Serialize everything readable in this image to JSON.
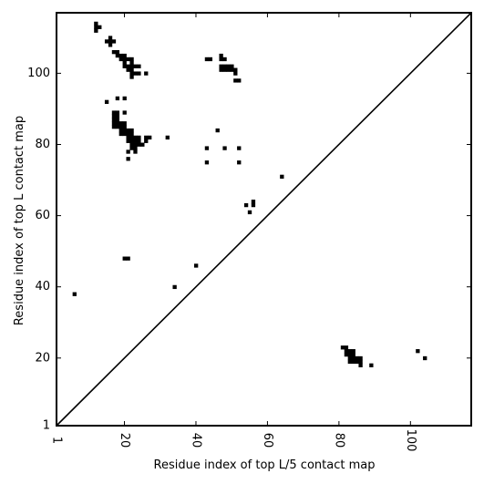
{
  "chart_data": {
    "type": "scatter",
    "title": "",
    "xlabel": "Residue index of top L/5 contact map",
    "ylabel": "Residue index of top L contact map",
    "xlim": [
      1,
      117
    ],
    "ylim": [
      1,
      117
    ],
    "x_ticks": [
      1,
      20,
      40,
      60,
      80,
      100
    ],
    "y_ticks": [
      1,
      20,
      40,
      60,
      80,
      100
    ],
    "grid": false,
    "diagonal": true,
    "upper_left_points": [
      [
        12,
        112
      ],
      [
        12,
        113
      ],
      [
        12,
        114
      ],
      [
        13,
        113
      ],
      [
        15,
        109
      ],
      [
        16,
        108
      ],
      [
        16,
        109
      ],
      [
        16,
        110
      ],
      [
        17,
        109
      ],
      [
        17,
        106
      ],
      [
        18,
        106
      ],
      [
        18,
        105
      ],
      [
        19,
        105
      ],
      [
        19,
        104
      ],
      [
        20,
        105
      ],
      [
        20,
        104
      ],
      [
        20,
        103
      ],
      [
        20,
        102
      ],
      [
        21,
        102
      ],
      [
        21,
        101
      ],
      [
        21,
        104
      ],
      [
        22,
        104
      ],
      [
        22,
        103
      ],
      [
        22,
        102
      ],
      [
        22,
        101
      ],
      [
        22,
        100
      ],
      [
        22,
        99
      ],
      [
        23,
        102
      ],
      [
        23,
        100
      ],
      [
        24,
        102
      ],
      [
        24,
        100
      ],
      [
        26,
        100
      ],
      [
        15,
        92
      ],
      [
        18,
        93
      ],
      [
        20,
        93
      ],
      [
        20,
        89
      ],
      [
        17,
        89
      ],
      [
        18,
        89
      ],
      [
        17,
        88
      ],
      [
        18,
        88
      ],
      [
        17,
        87
      ],
      [
        18,
        87
      ],
      [
        17,
        86
      ],
      [
        18,
        86
      ],
      [
        19,
        86
      ],
      [
        20,
        86
      ],
      [
        17,
        85
      ],
      [
        18,
        85
      ],
      [
        19,
        85
      ],
      [
        20,
        85
      ],
      [
        19,
        84
      ],
      [
        20,
        84
      ],
      [
        21,
        84
      ],
      [
        22,
        84
      ],
      [
        19,
        83
      ],
      [
        20,
        83
      ],
      [
        21,
        83
      ],
      [
        22,
        83
      ],
      [
        21,
        82
      ],
      [
        22,
        82
      ],
      [
        23,
        82
      ],
      [
        24,
        82
      ],
      [
        21,
        81
      ],
      [
        22,
        81
      ],
      [
        23,
        81
      ],
      [
        24,
        81
      ],
      [
        22,
        80
      ],
      [
        23,
        80
      ],
      [
        24,
        80
      ],
      [
        25,
        80
      ],
      [
        22,
        79
      ],
      [
        23,
        79
      ],
      [
        21,
        78
      ],
      [
        23,
        78
      ],
      [
        21,
        76
      ],
      [
        26,
        82
      ],
      [
        27,
        82
      ],
      [
        26,
        81
      ],
      [
        32,
        82
      ],
      [
        43,
        104
      ],
      [
        44,
        104
      ],
      [
        47,
        104
      ],
      [
        48,
        104
      ],
      [
        47,
        105
      ],
      [
        47,
        102
      ],
      [
        48,
        102
      ],
      [
        49,
        102
      ],
      [
        50,
        102
      ],
      [
        47,
        101
      ],
      [
        48,
        101
      ],
      [
        49,
        101
      ],
      [
        50,
        101
      ],
      [
        51,
        101
      ],
      [
        51,
        100
      ],
      [
        51,
        98
      ],
      [
        52,
        98
      ],
      [
        46,
        84
      ],
      [
        43,
        79
      ],
      [
        48,
        79
      ],
      [
        52,
        79
      ],
      [
        43,
        75
      ],
      [
        52,
        75
      ],
      [
        64,
        71
      ],
      [
        54,
        63
      ],
      [
        56,
        63
      ],
      [
        56,
        64
      ],
      [
        55,
        61
      ],
      [
        20,
        48
      ],
      [
        21,
        48
      ],
      [
        40,
        46
      ],
      [
        34,
        40
      ],
      [
        6,
        38
      ]
    ],
    "lower_right_points": [
      [
        81,
        23
      ],
      [
        82,
        23
      ],
      [
        82,
        22
      ],
      [
        83,
        22
      ],
      [
        84,
        22
      ],
      [
        82,
        21
      ],
      [
        83,
        21
      ],
      [
        84,
        21
      ],
      [
        83,
        20
      ],
      [
        84,
        20
      ],
      [
        85,
        20
      ],
      [
        86,
        20
      ],
      [
        83,
        19
      ],
      [
        84,
        19
      ],
      [
        85,
        19
      ],
      [
        86,
        19
      ],
      [
        86,
        18
      ],
      [
        89,
        18
      ],
      [
        102,
        22
      ],
      [
        104,
        20
      ]
    ]
  }
}
